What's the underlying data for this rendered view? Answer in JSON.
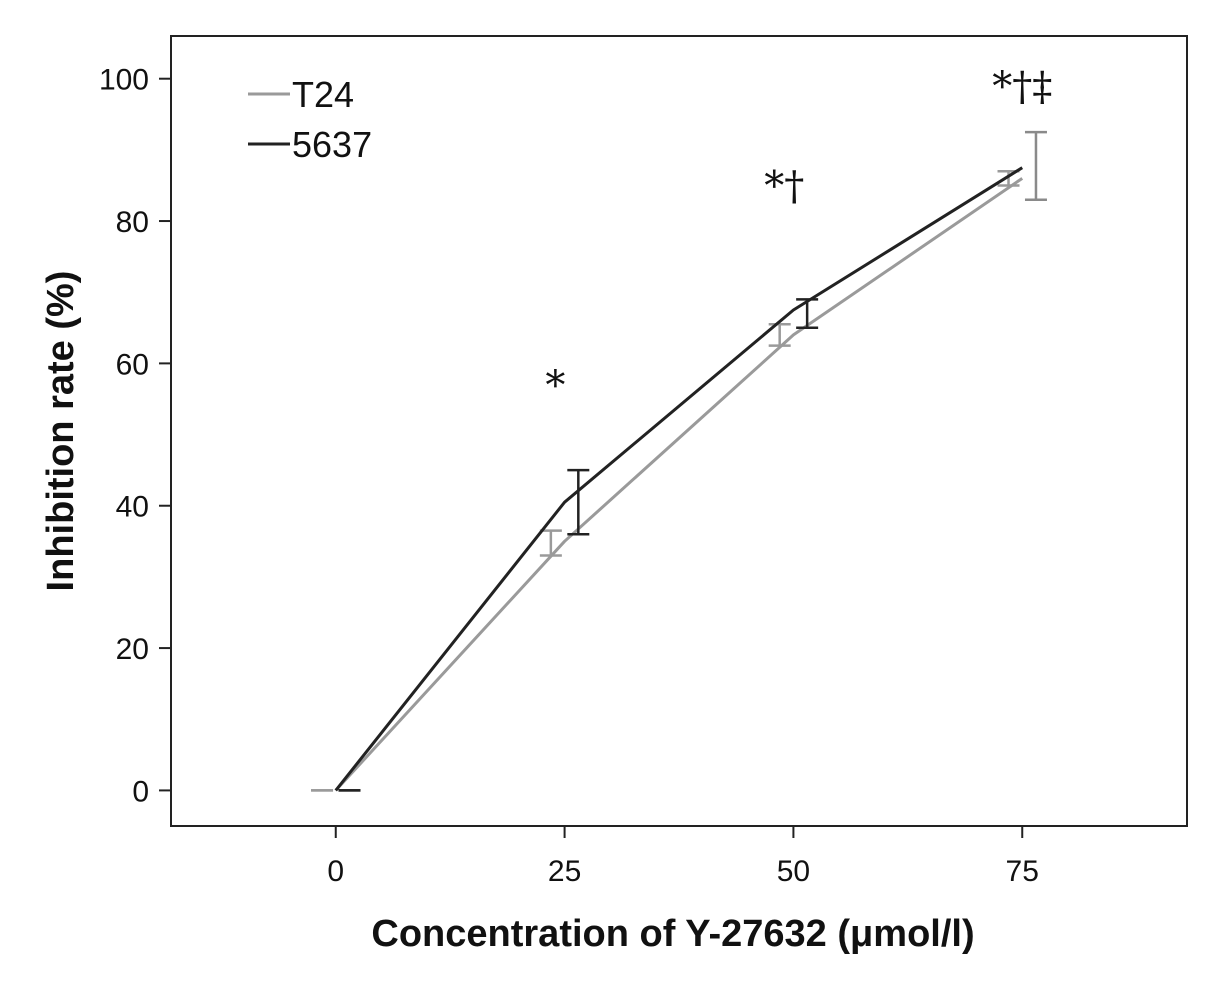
{
  "chart_data": {
    "type": "line",
    "xlabel": "Concentration of Y-27632 (μmol/l)",
    "ylabel": "Inhibition rate (%)",
    "xlim": [
      -18,
      93
    ],
    "ylim": [
      -5,
      106
    ],
    "xticks": [
      0,
      25,
      50,
      75
    ],
    "yticks": [
      0,
      20,
      40,
      60,
      80,
      100
    ],
    "grid": false,
    "legend_position": "top-left",
    "series": [
      {
        "name": "T24",
        "color": "#9a9a9a",
        "x": [
          0,
          25,
          50,
          75
        ],
        "y": [
          0,
          35,
          64,
          86
        ],
        "error_low": [
          0,
          33,
          62.5,
          85
        ],
        "error_high": [
          0,
          36.5,
          65.5,
          87
        ],
        "error_offset": -1.5
      },
      {
        "name": "5637",
        "color": "#222222",
        "x": [
          0,
          25,
          50,
          75
        ],
        "y": [
          0,
          40.5,
          67.5,
          87.5
        ],
        "error_low": [
          0,
          36,
          65,
          83
        ],
        "error_high": [
          0,
          45,
          69,
          92.5
        ],
        "error_offset": 1.5,
        "error_color": [
          "#222222",
          "#222222",
          "#222222",
          "#8a8a8a"
        ]
      }
    ],
    "annotations": [
      {
        "text": "*",
        "x": 24,
        "y": 55
      },
      {
        "text": "*†",
        "x": 49,
        "y": 83
      },
      {
        "text": "*†‡",
        "x": 75,
        "y": 97
      }
    ]
  }
}
